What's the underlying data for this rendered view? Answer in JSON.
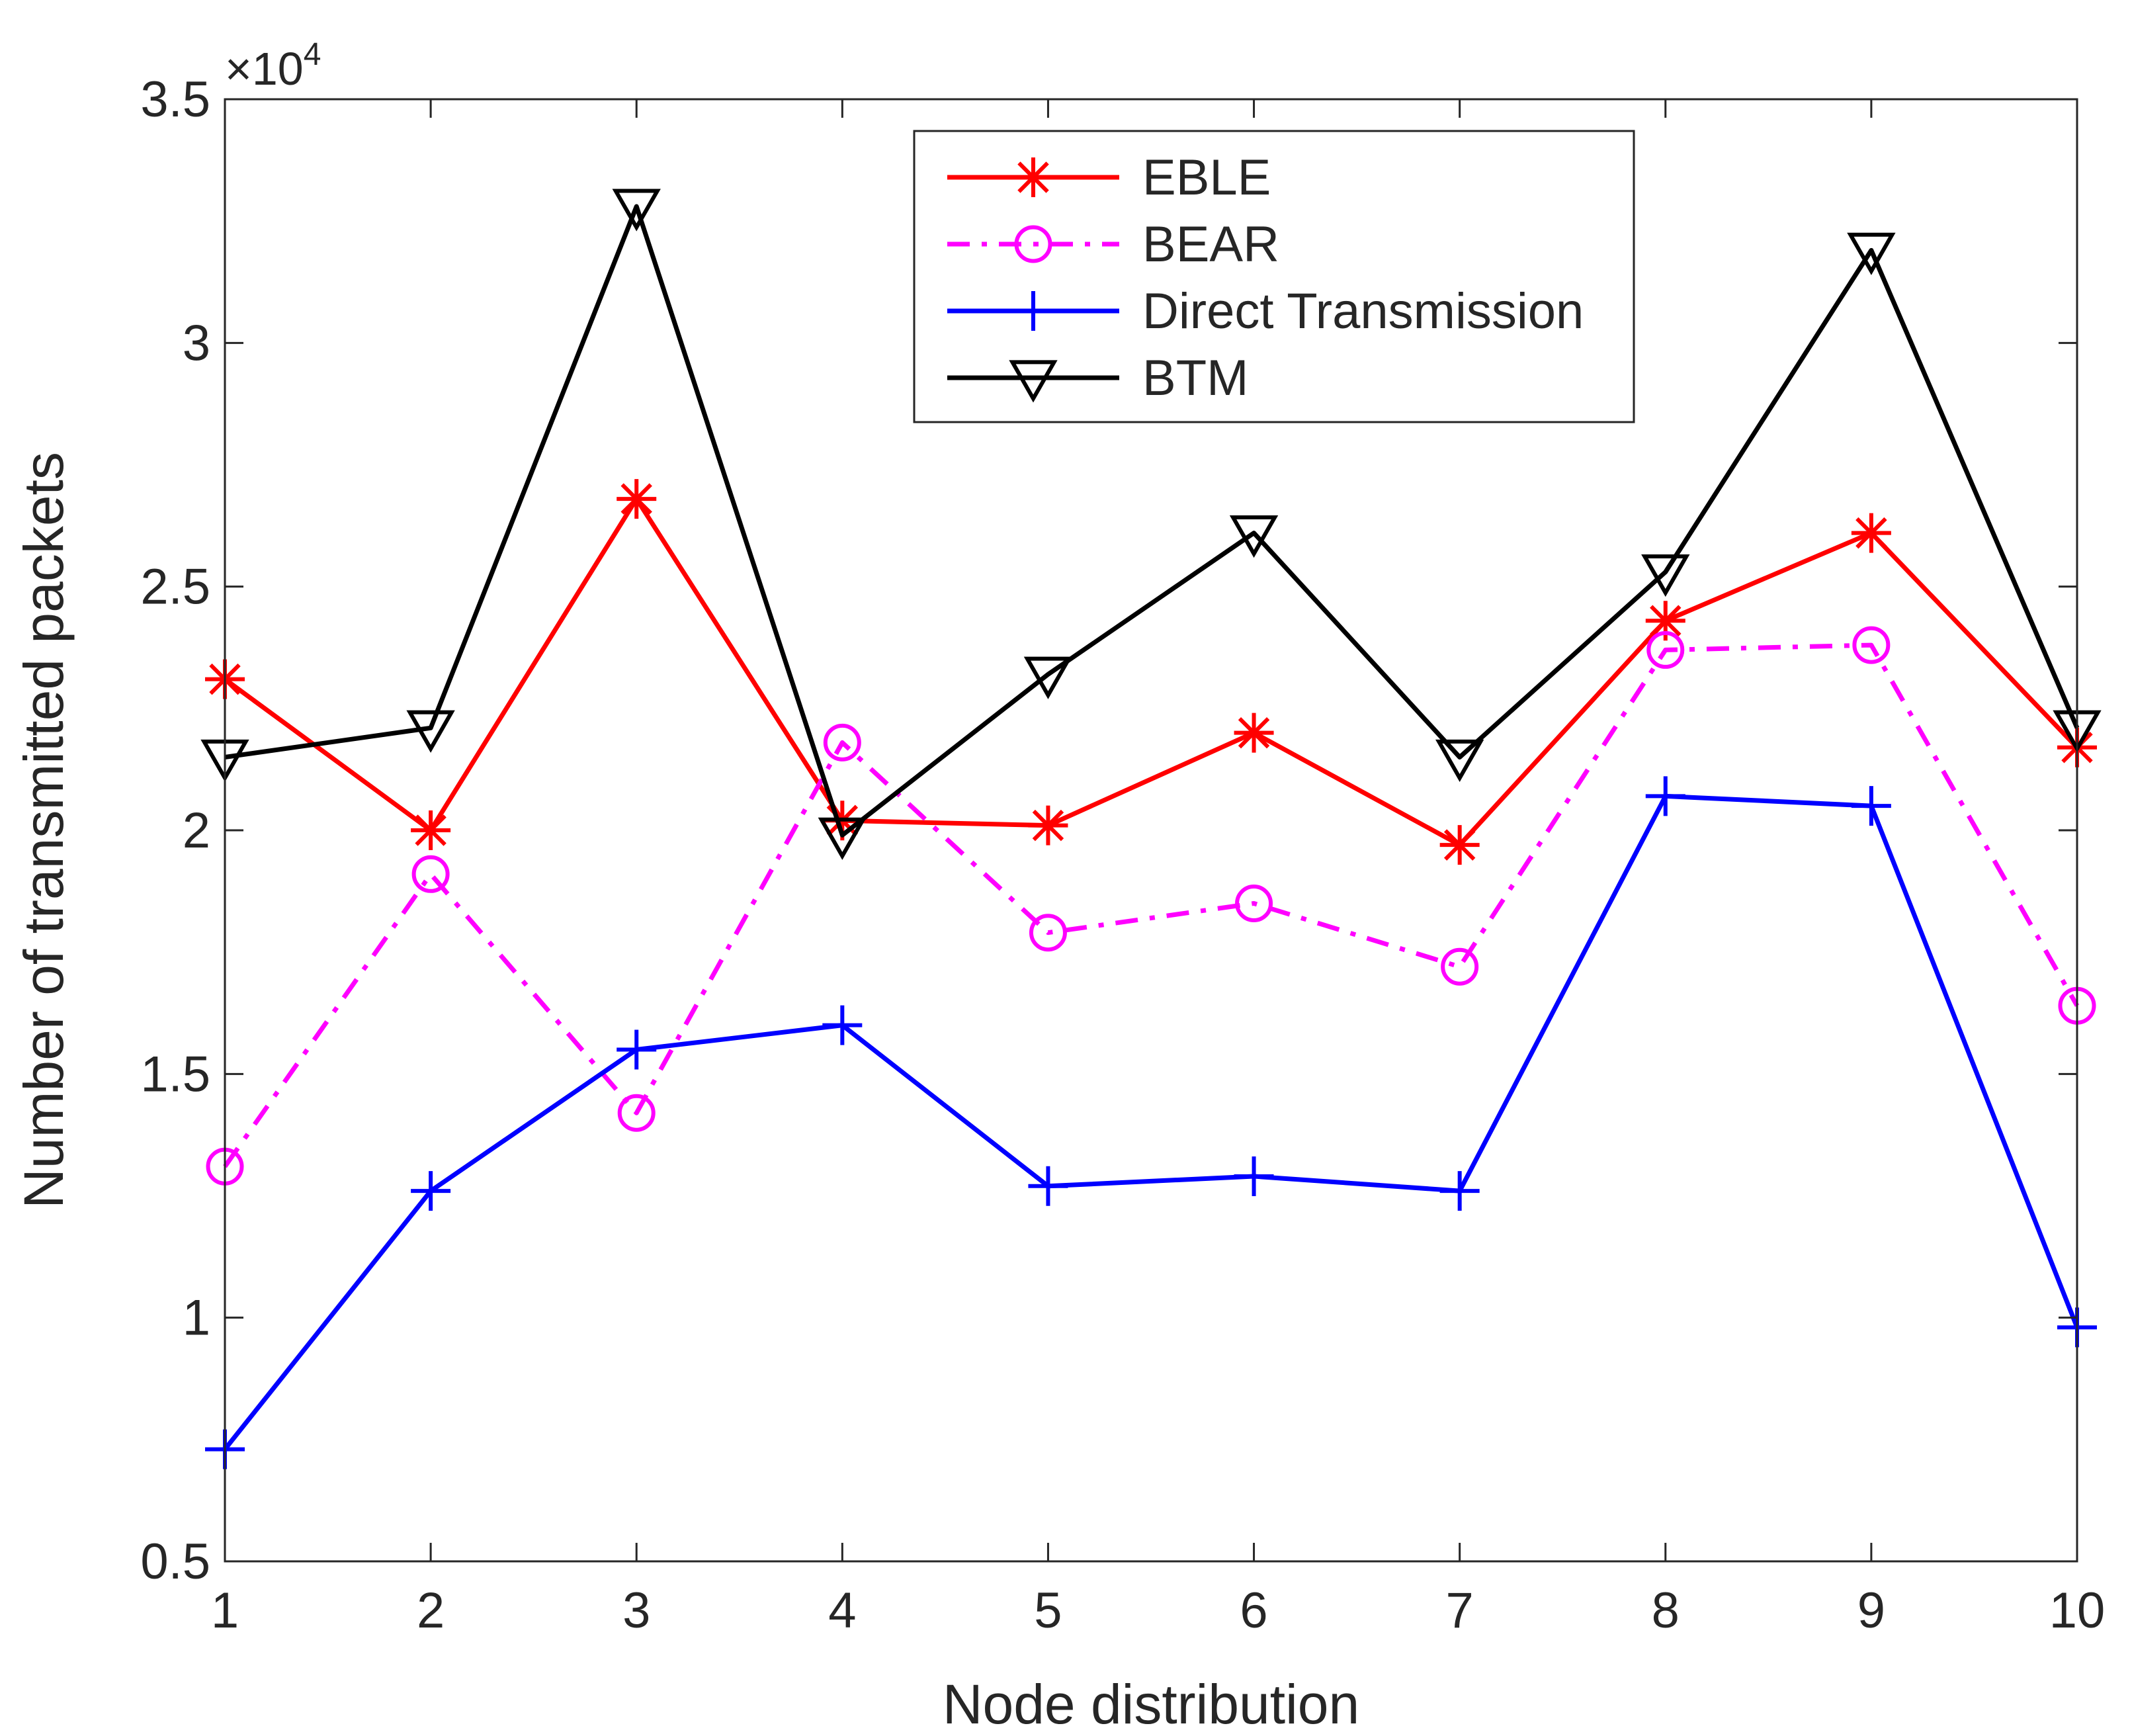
{
  "chart_data": {
    "type": "line",
    "title": "",
    "xlabel": "Node distribution",
    "ylabel": "Number of transmitted packets",
    "exponent_label": "×10",
    "exponent_power": "4",
    "x": [
      1,
      2,
      3,
      4,
      5,
      6,
      7,
      8,
      9,
      10
    ],
    "xticks": [
      "1",
      "2",
      "3",
      "4",
      "5",
      "6",
      "7",
      "8",
      "9",
      "10"
    ],
    "xlim": [
      1,
      10
    ],
    "yticks": [
      "0.5",
      "1",
      "1.5",
      "2",
      "2.5",
      "3",
      "3.5"
    ],
    "ytick_values": [
      0.5,
      1,
      1.5,
      2,
      2.5,
      3,
      3.5
    ],
    "ylim": [
      0.5,
      3.5
    ],
    "grid": false,
    "legend_position": "top-center",
    "series": [
      {
        "name": "EBLE",
        "color": "#ff0000",
        "marker": "asterisk",
        "dash": "solid",
        "values": [
          2.31,
          2.0,
          2.68,
          2.02,
          2.01,
          2.2,
          1.97,
          2.43,
          2.61,
          2.17
        ]
      },
      {
        "name": "BEAR",
        "color": "#ff00ff",
        "marker": "circle",
        "dash": "dashdot",
        "values": [
          1.31,
          1.91,
          1.42,
          2.18,
          1.79,
          1.85,
          1.72,
          2.37,
          2.38,
          1.64
        ]
      },
      {
        "name": "Direct Transmission",
        "color": "#0000ff",
        "marker": "plus",
        "dash": "solid",
        "values": [
          0.73,
          1.26,
          1.55,
          1.6,
          1.27,
          1.29,
          1.26,
          2.07,
          2.05,
          0.98
        ]
      },
      {
        "name": "BTM",
        "color": "#000000",
        "marker": "triangle-down",
        "dash": "solid",
        "values": [
          2.15,
          2.21,
          3.28,
          1.99,
          2.32,
          2.61,
          2.15,
          2.53,
          3.19,
          2.21
        ]
      }
    ]
  }
}
